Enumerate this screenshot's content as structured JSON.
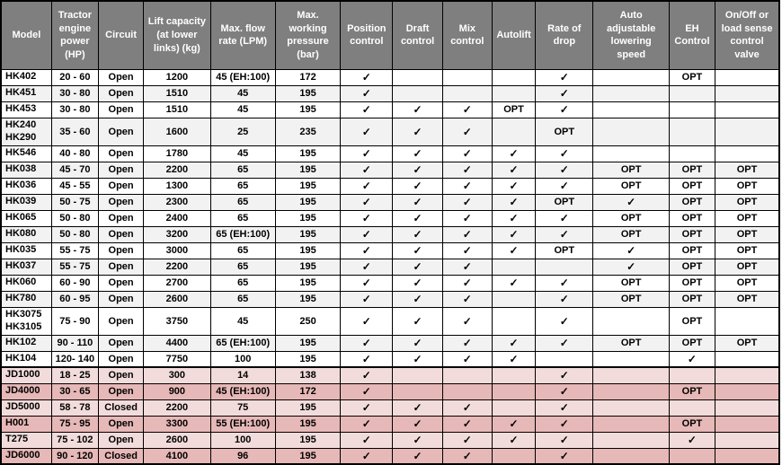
{
  "table": {
    "title": "Tractor hitch hydraulic specification table",
    "check_symbol": "✓",
    "opt_label": "OPT",
    "colors": {
      "header_bg": "#7f7f7f",
      "header_text": "#ffffff",
      "row_white": "#ffffff",
      "row_gray": "#f2f2f2",
      "row_pink_light": "#f2dcdb",
      "row_pink_dark": "#e6b8b7",
      "border": "#000000"
    },
    "columns": [
      {
        "key": "model",
        "label": "Model"
      },
      {
        "key": "power",
        "label": "Tractor engine power (HP)"
      },
      {
        "key": "circuit",
        "label": "Circuit"
      },
      {
        "key": "lift",
        "label": "Lift capacity (at lower links) (kg)"
      },
      {
        "key": "flow",
        "label": "Max. flow rate (LPM)"
      },
      {
        "key": "pressure",
        "label": "Max. working pressure (bar)"
      },
      {
        "key": "position",
        "label": "Position control"
      },
      {
        "key": "draft",
        "label": "Draft control"
      },
      {
        "key": "mix",
        "label": "Mix control"
      },
      {
        "key": "autolift",
        "label": "Autolift"
      },
      {
        "key": "rate-of-drop",
        "label": "Rate of drop"
      },
      {
        "key": "auto-lowering",
        "label": "Auto adjustable lowering speed"
      },
      {
        "key": "eh-control",
        "label": "EH Control"
      },
      {
        "key": "onoff-valve",
        "label": "On/Off or load sense control valve"
      }
    ],
    "rows": [
      {
        "model": "HK402",
        "power": "20 - 60",
        "circuit": "Open",
        "lift": "1200",
        "flow": "45 (EH:100)",
        "pressure": "172",
        "features": [
          "✓",
          "",
          "",
          "",
          "✓",
          "",
          "OPT",
          ""
        ],
        "shade": "white",
        "tall": false,
        "thick_top": false
      },
      {
        "model": "HK451",
        "power": "30 - 80",
        "circuit": "Open",
        "lift": "1510",
        "flow": "45",
        "pressure": "195",
        "features": [
          "✓",
          "",
          "",
          "",
          "✓",
          "",
          "",
          ""
        ],
        "shade": "gray",
        "tall": false,
        "thick_top": false
      },
      {
        "model": "HK453",
        "power": "30 - 80",
        "circuit": "Open",
        "lift": "1510",
        "flow": "45",
        "pressure": "195",
        "features": [
          "✓",
          "✓",
          "✓",
          "OPT",
          "✓",
          "",
          "",
          ""
        ],
        "shade": "white",
        "tall": false,
        "thick_top": false
      },
      {
        "model": "HK240\nHK290",
        "power": "35 - 60",
        "circuit": "Open",
        "lift": "1600",
        "flow": "25",
        "pressure": "235",
        "features": [
          "✓",
          "✓",
          "✓",
          "",
          "OPT",
          "",
          "",
          ""
        ],
        "shade": "gray",
        "tall": true,
        "thick_top": false
      },
      {
        "model": "HK546",
        "power": "40 - 80",
        "circuit": "Open",
        "lift": "1780",
        "flow": "45",
        "pressure": "195",
        "features": [
          "✓",
          "✓",
          "✓",
          "✓",
          "✓",
          "",
          "",
          ""
        ],
        "shade": "white",
        "tall": false,
        "thick_top": false
      },
      {
        "model": "HK038",
        "power": "45 - 70",
        "circuit": "Open",
        "lift": "2200",
        "flow": "65",
        "pressure": "195",
        "features": [
          "✓",
          "✓",
          "✓",
          "✓",
          "✓",
          "OPT",
          "OPT",
          "OPT"
        ],
        "shade": "gray",
        "tall": false,
        "thick_top": false
      },
      {
        "model": "HK036",
        "power": "45 - 55",
        "circuit": "Open",
        "lift": "1300",
        "flow": "65",
        "pressure": "195",
        "features": [
          "✓",
          "✓",
          "✓",
          "✓",
          "✓",
          "OPT",
          "OPT",
          "OPT"
        ],
        "shade": "white",
        "tall": false,
        "thick_top": false
      },
      {
        "model": "HK039",
        "power": "50 - 75",
        "circuit": "Open",
        "lift": "2300",
        "flow": "65",
        "pressure": "195",
        "features": [
          "✓",
          "✓",
          "✓",
          "✓",
          "OPT",
          "✓",
          "OPT",
          "OPT"
        ],
        "shade": "gray",
        "tall": false,
        "thick_top": false
      },
      {
        "model": "HK065",
        "power": "50 - 80",
        "circuit": "Open",
        "lift": "2400",
        "flow": "65",
        "pressure": "195",
        "features": [
          "✓",
          "✓",
          "✓",
          "✓",
          "✓",
          "OPT",
          "OPT",
          "OPT"
        ],
        "shade": "white",
        "tall": false,
        "thick_top": false
      },
      {
        "model": "HK080",
        "power": "50 - 80",
        "circuit": "Open",
        "lift": "3200",
        "flow": "65 (EH:100)",
        "pressure": "195",
        "features": [
          "✓",
          "✓",
          "✓",
          "✓",
          "✓",
          "OPT",
          "OPT",
          "OPT"
        ],
        "shade": "gray",
        "tall": false,
        "thick_top": false
      },
      {
        "model": "HK035",
        "power": "55 - 75",
        "circuit": "Open",
        "lift": "3000",
        "flow": "65",
        "pressure": "195",
        "features": [
          "✓",
          "✓",
          "✓",
          "✓",
          "OPT",
          "✓",
          "OPT",
          "OPT"
        ],
        "shade": "white",
        "tall": false,
        "thick_top": false
      },
      {
        "model": "HK037",
        "power": "55 - 75",
        "circuit": "Open",
        "lift": "2200",
        "flow": "65",
        "pressure": "195",
        "features": [
          "✓",
          "✓",
          "✓",
          "",
          "",
          "✓",
          "OPT",
          "OPT"
        ],
        "shade": "gray",
        "tall": false,
        "thick_top": false
      },
      {
        "model": "HK060",
        "power": "60 - 90",
        "circuit": "Open",
        "lift": "2700",
        "flow": "65",
        "pressure": "195",
        "features": [
          "✓",
          "✓",
          "✓",
          "✓",
          "✓",
          "OPT",
          "OPT",
          "OPT"
        ],
        "shade": "white",
        "tall": false,
        "thick_top": false
      },
      {
        "model": "HK780",
        "power": "60 - 95",
        "circuit": "Open",
        "lift": "2600",
        "flow": "65",
        "pressure": "195",
        "features": [
          "✓",
          "✓",
          "✓",
          "",
          "✓",
          "OPT",
          "OPT",
          "OPT"
        ],
        "shade": "gray",
        "tall": false,
        "thick_top": false
      },
      {
        "model": "HK3075\nHK3105",
        "power": "75 - 90",
        "circuit": "Open",
        "lift": "3750",
        "flow": "45",
        "pressure": "250",
        "features": [
          "✓",
          "✓",
          "✓",
          "",
          "✓",
          "",
          "OPT",
          ""
        ],
        "shade": "white",
        "tall": true,
        "thick_top": false
      },
      {
        "model": "HK102",
        "power": "90 - 110",
        "circuit": "Open",
        "lift": "4400",
        "flow": "65 (EH:100)",
        "pressure": "195",
        "features": [
          "✓",
          "✓",
          "✓",
          "✓",
          "✓",
          "OPT",
          "OPT",
          "OPT"
        ],
        "shade": "gray",
        "tall": false,
        "thick_top": false
      },
      {
        "model": "HK104",
        "power": "120- 140",
        "circuit": "Open",
        "lift": "7750",
        "flow": "100",
        "pressure": "195",
        "features": [
          "✓",
          "✓",
          "✓",
          "✓",
          "",
          "",
          "✓",
          ""
        ],
        "shade": "white",
        "tall": false,
        "thick_top": false
      },
      {
        "model": "JD1000",
        "power": "18 - 25",
        "circuit": "Open",
        "lift": "300",
        "flow": "14",
        "pressure": "138",
        "features": [
          "✓",
          "",
          "",
          "",
          "✓",
          "",
          "",
          ""
        ],
        "shade": "pink-light",
        "tall": false,
        "thick_top": true
      },
      {
        "model": "JD4000",
        "power": "30 - 65",
        "circuit": "Open",
        "lift": "900",
        "flow": "45 (EH:100)",
        "pressure": "172",
        "features": [
          "✓",
          "",
          "",
          "",
          "✓",
          "",
          "OPT",
          ""
        ],
        "shade": "pink-dark",
        "tall": false,
        "thick_top": false
      },
      {
        "model": "JD5000",
        "power": "58 - 78",
        "circuit": "Closed",
        "lift": "2200",
        "flow": "75",
        "pressure": "195",
        "features": [
          "✓",
          "✓",
          "✓",
          "",
          "✓",
          "",
          "",
          ""
        ],
        "shade": "pink-light",
        "tall": false,
        "thick_top": false
      },
      {
        "model": "H001",
        "power": "75 - 95",
        "circuit": "Open",
        "lift": "3300",
        "flow": "55 (EH:100)",
        "pressure": "195",
        "features": [
          "✓",
          "✓",
          "✓",
          "✓",
          "✓",
          "",
          "OPT",
          ""
        ],
        "shade": "pink-dark",
        "tall": false,
        "thick_top": false
      },
      {
        "model": "T275",
        "power": "75 - 102",
        "circuit": "Open",
        "lift": "2600",
        "flow": "100",
        "pressure": "195",
        "features": [
          "✓",
          "✓",
          "✓",
          "✓",
          "✓",
          "",
          "✓",
          ""
        ],
        "shade": "pink-light",
        "tall": false,
        "thick_top": false
      },
      {
        "model": "JD6000",
        "power": "90 - 120",
        "circuit": "Closed",
        "lift": "4100",
        "flow": "96",
        "pressure": "195",
        "features": [
          "✓",
          "✓",
          "✓",
          "",
          "✓",
          "",
          "",
          ""
        ],
        "shade": "pink-dark",
        "tall": false,
        "thick_top": false
      }
    ]
  }
}
